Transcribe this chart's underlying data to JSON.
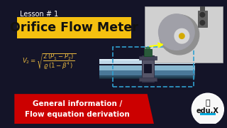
{
  "bg_color": "#141428",
  "lesson_text": "Lesson # 1",
  "title_text": "Orifice Flow Meter",
  "title_bg": "#f5c010",
  "title_fg": "#111111",
  "formula_color": "#e8b840",
  "bottom_banner_color": "#cc0000",
  "bottom_text1": "General information /",
  "bottom_text2": "Flow equation derivation",
  "bottom_text_color": "#ffffff",
  "edu_text": "edu.X",
  "pipe_mid_color": "#7ab8d8",
  "pipe_edge_color": "#4a7090",
  "pipe_bright": "#c0dff0"
}
